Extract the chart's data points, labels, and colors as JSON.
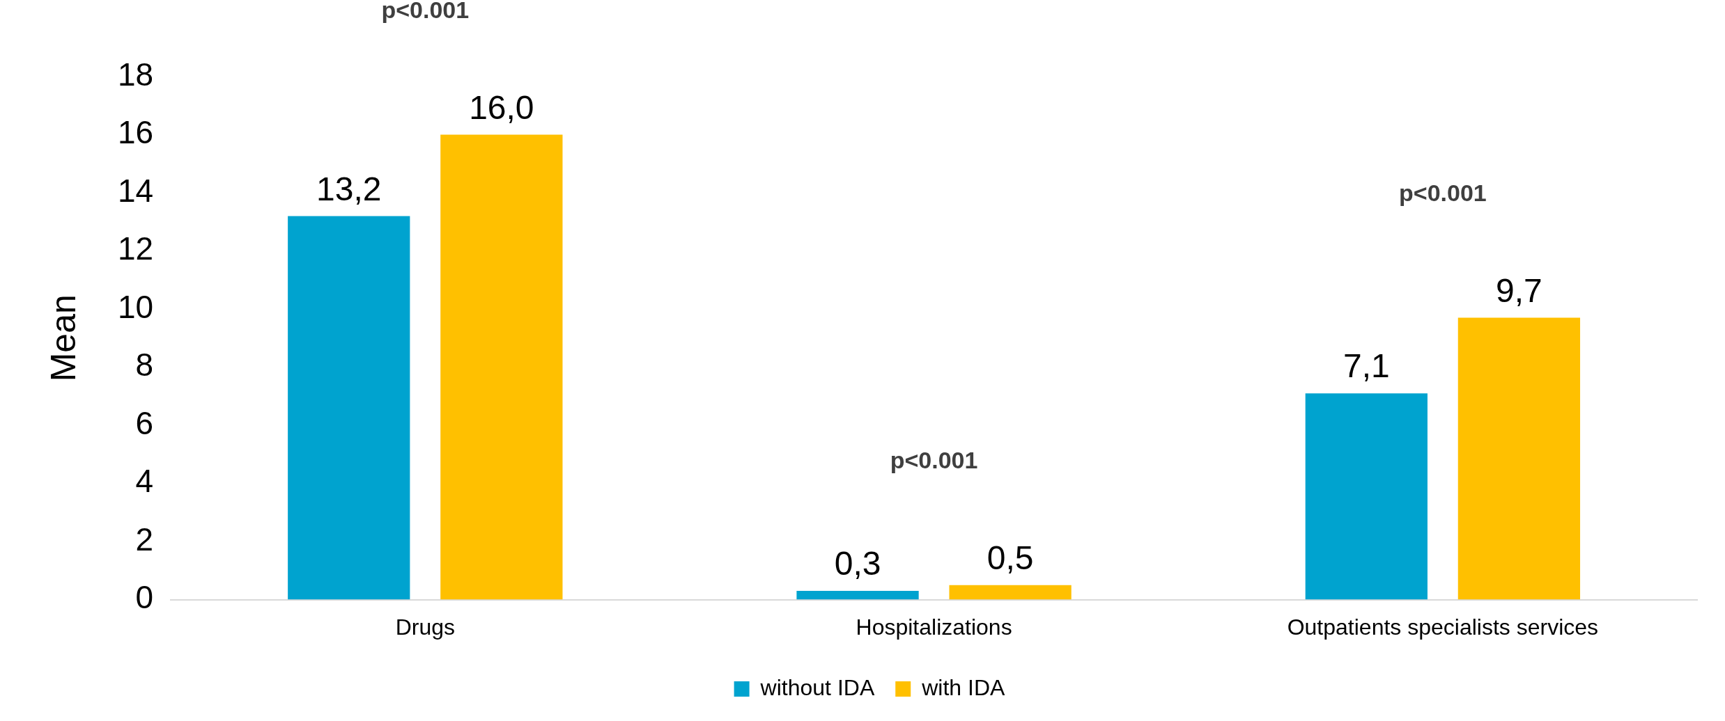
{
  "chart_data": {
    "type": "bar",
    "ylabel": "Mean",
    "categories": [
      "Drugs",
      "Hospitalizations",
      "Outpatients specialists services"
    ],
    "series": [
      {
        "name": "without IDA",
        "color": "#00a3cf",
        "values": [
          13.2,
          0.3,
          7.1
        ],
        "value_labels": [
          "13,2",
          "0,3",
          "7,1"
        ]
      },
      {
        "name": "with IDA",
        "color": "#ffc000",
        "values": [
          16.0,
          0.5,
          9.7
        ],
        "value_labels": [
          "16,0",
          "0,5",
          "9,7"
        ]
      }
    ],
    "ylim": [
      0,
      18
    ],
    "yticks": [
      0,
      2,
      4,
      6,
      8,
      10,
      12,
      14,
      16,
      18
    ],
    "grid": false,
    "legend": "bottom",
    "annotations": [
      "p<0.001",
      "p<0.001",
      "p<0.001"
    ]
  }
}
